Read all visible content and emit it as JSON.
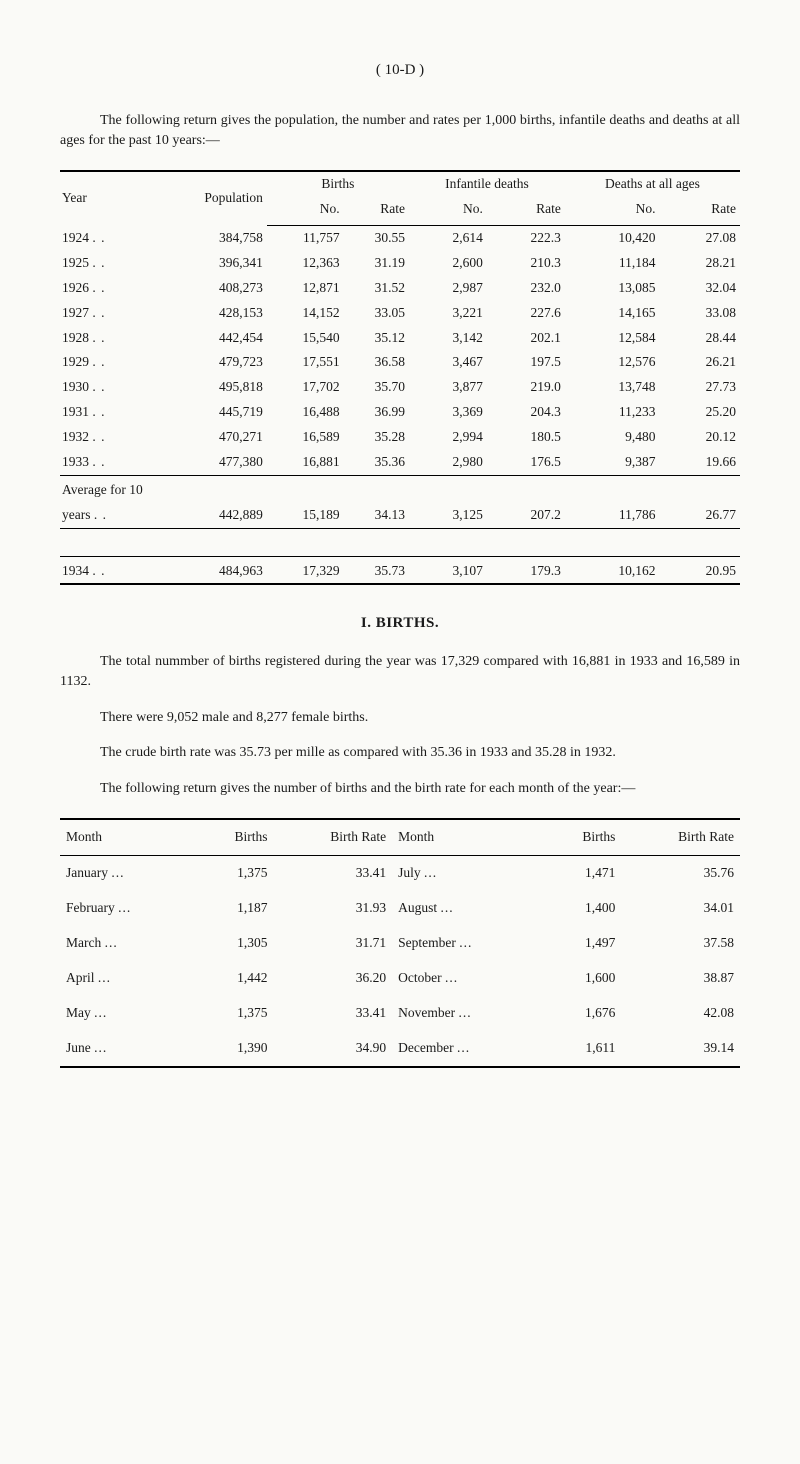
{
  "page_number_label": "( 10-D )",
  "intro_para": "The following return gives the population, the number and rates per 1,000 births, infantile deaths and deaths at all ages for the past 10 years:—",
  "table1": {
    "headers": {
      "year": "Year",
      "population": "Population",
      "births": "Births",
      "infantile": "Infantile deaths",
      "deaths_all": "Deaths at all ages",
      "no": "No.",
      "rate": "Rate"
    },
    "rows": [
      {
        "year": "1924",
        "dots": ". .",
        "pop": "384,758",
        "b_no": "11,757",
        "b_rate": "30.55",
        "i_no": "2,614",
        "i_rate": "222.3",
        "d_no": "10,420",
        "d_rate": "27.08"
      },
      {
        "year": "1925",
        "dots": ". .",
        "pop": "396,341",
        "b_no": "12,363",
        "b_rate": "31.19",
        "i_no": "2,600",
        "i_rate": "210.3",
        "d_no": "11,184",
        "d_rate": "28.21"
      },
      {
        "year": "1926",
        "dots": ". .",
        "pop": "408,273",
        "b_no": "12,871",
        "b_rate": "31.52",
        "i_no": "2,987",
        "i_rate": "232.0",
        "d_no": "13,085",
        "d_rate": "32.04"
      },
      {
        "year": "1927",
        "dots": ". .",
        "pop": "428,153",
        "b_no": "14,152",
        "b_rate": "33.05",
        "i_no": "3,221",
        "i_rate": "227.6",
        "d_no": "14,165",
        "d_rate": "33.08"
      },
      {
        "year": "1928",
        "dots": ". .",
        "pop": "442,454",
        "b_no": "15,540",
        "b_rate": "35.12",
        "i_no": "3,142",
        "i_rate": "202.1",
        "d_no": "12,584",
        "d_rate": "28.44"
      },
      {
        "year": "1929",
        "dots": ". .",
        "pop": "479,723",
        "b_no": "17,551",
        "b_rate": "36.58",
        "i_no": "3,467",
        "i_rate": "197.5",
        "d_no": "12,576",
        "d_rate": "26.21"
      },
      {
        "year": "1930",
        "dots": ". .",
        "pop": "495,818",
        "b_no": "17,702",
        "b_rate": "35.70",
        "i_no": "3,877",
        "i_rate": "219.0",
        "d_no": "13,748",
        "d_rate": "27.73"
      },
      {
        "year": "1931",
        "dots": ". .",
        "pop": "445,719",
        "b_no": "16,488",
        "b_rate": "36.99",
        "i_no": "3,369",
        "i_rate": "204.3",
        "d_no": "11,233",
        "d_rate": "25.20"
      },
      {
        "year": "1932",
        "dots": ". .",
        "pop": "470,271",
        "b_no": "16,589",
        "b_rate": "35.28",
        "i_no": "2,994",
        "i_rate": "180.5",
        "d_no": "9,480",
        "d_rate": "20.12"
      },
      {
        "year": "1933",
        "dots": ". .",
        "pop": "477,380",
        "b_no": "16,881",
        "b_rate": "35.36",
        "i_no": "2,980",
        "i_rate": "176.5",
        "d_no": "9,387",
        "d_rate": "19.66"
      }
    ],
    "avg_label_1": "Average for 10",
    "avg_label_2": "years",
    "avg_dots": ". .",
    "avg": {
      "pop": "442,889",
      "b_no": "15,189",
      "b_rate": "34.13",
      "i_no": "3,125",
      "i_rate": "207.2",
      "d_no": "11,786",
      "d_rate": "26.77"
    },
    "row_1934": {
      "year": "1934",
      "dots": ". .",
      "pop": "484,963",
      "b_no": "17,329",
      "b_rate": "35.73",
      "i_no": "3,107",
      "i_rate": "179.3",
      "d_no": "10,162",
      "d_rate": "20.95"
    }
  },
  "section_title": "I. BIRTHS.",
  "births_para1": "The total nummber of births registered during the year was 17,329 compared with 16,881 in 1933 and 16,589 in 1132.",
  "births_para2": "There were 9,052 male and 8,277 female births.",
  "births_para3": "The crude birth rate was 35.73 per mille as compared with 35.36 in 1933 and 35.28 in 1932.",
  "births_para4": "The following return gives the number of births and the birth rate for each month of the year:—",
  "table2": {
    "headers": {
      "month": "Month",
      "births": "Births",
      "rate": "Birth Rate"
    },
    "rows_left": [
      {
        "month": "January",
        "dots": "...",
        "births": "1,375",
        "rate": "33.41"
      },
      {
        "month": "February",
        "dots": "...",
        "births": "1,187",
        "rate": "31.93"
      },
      {
        "month": "March",
        "dots": "...",
        "births": "1,305",
        "rate": "31.71"
      },
      {
        "month": "April",
        "dots": "...",
        "births": "1,442",
        "rate": "36.20"
      },
      {
        "month": "May",
        "dots": "...",
        "births": "1,375",
        "rate": "33.41"
      },
      {
        "month": "June",
        "dots": "...",
        "births": "1,390",
        "rate": "34.90"
      }
    ],
    "rows_right": [
      {
        "month": "July",
        "dots": "...",
        "births": "1,471",
        "rate": "35.76"
      },
      {
        "month": "August",
        "dots": "...",
        "births": "1,400",
        "rate": "34.01"
      },
      {
        "month": "September",
        "dots": "...",
        "births": "1,497",
        "rate": "37.58"
      },
      {
        "month": "October",
        "dots": "...",
        "births": "1,600",
        "rate": "38.87"
      },
      {
        "month": "November",
        "dots": "...",
        "births": "1,676",
        "rate": "42.08"
      },
      {
        "month": "December",
        "dots": "...",
        "births": "1,611",
        "rate": "39.14"
      }
    ]
  }
}
